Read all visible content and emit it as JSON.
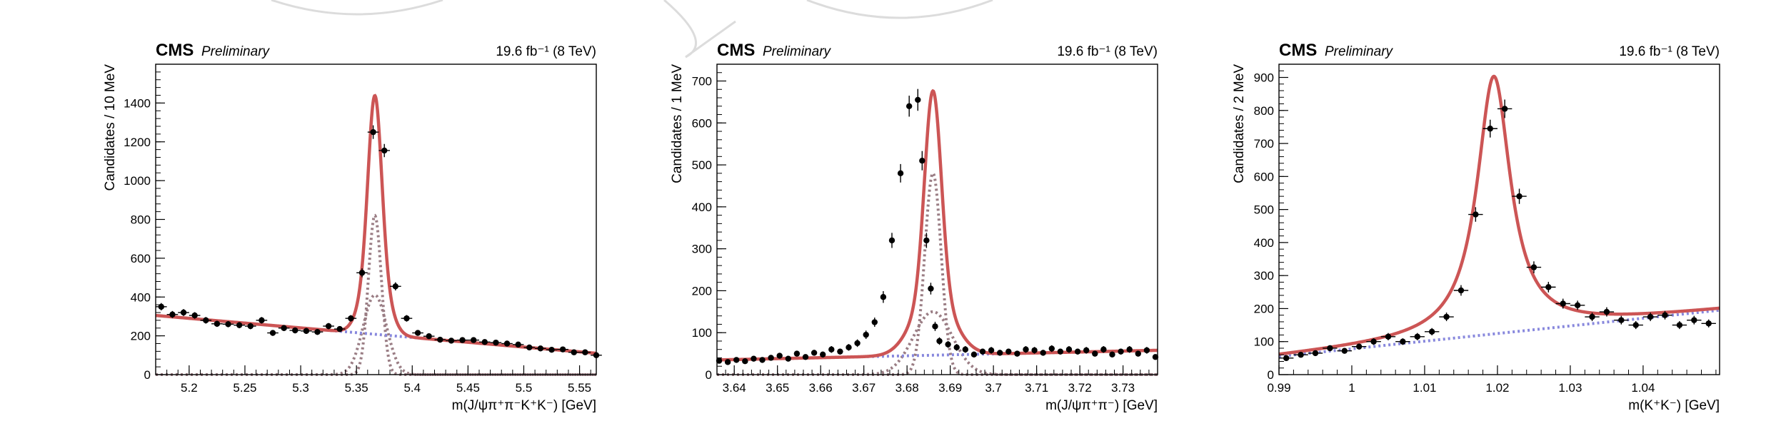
{
  "chart_data": [
    {
      "type": "scatter",
      "experiment": "CMS",
      "status": "Preliminary",
      "lumi_label": "19.6 fb⁻¹ (8 TeV)",
      "xlabel": "m(J/ψπ⁺π⁻K⁺K⁻) [GeV]",
      "ylabel": "Candidates / 10 MeV",
      "xlim": [
        5.17,
        5.565
      ],
      "ylim": [
        0,
        1600
      ],
      "xticks": [
        5.2,
        5.25,
        5.3,
        5.35,
        5.4,
        5.45,
        5.5,
        5.55
      ],
      "xtick_labels": [
        "5.2",
        "5.25",
        "5.3",
        "5.35",
        "5.4",
        "5.45",
        "5.5",
        "5.55"
      ],
      "yticks": [
        0,
        200,
        400,
        600,
        800,
        1000,
        1200,
        1400
      ],
      "ytick_labels": [
        "0",
        "200",
        "400",
        "600",
        "800",
        "1000",
        "1200",
        "1400"
      ],
      "bin_width": 0.01,
      "data_points": {
        "x": [
          5.175,
          5.185,
          5.195,
          5.205,
          5.215,
          5.225,
          5.235,
          5.245,
          5.255,
          5.265,
          5.275,
          5.285,
          5.295,
          5.305,
          5.315,
          5.325,
          5.335,
          5.345,
          5.355,
          5.365,
          5.375,
          5.385,
          5.395,
          5.405,
          5.415,
          5.425,
          5.435,
          5.445,
          5.455,
          5.465,
          5.475,
          5.485,
          5.495,
          5.505,
          5.515,
          5.525,
          5.535,
          5.545,
          5.555,
          5.565
        ],
        "y": [
          350,
          310,
          320,
          305,
          280,
          262,
          260,
          255,
          250,
          280,
          215,
          240,
          228,
          225,
          220,
          250,
          235,
          290,
          525,
          1250,
          1155,
          455,
          290,
          215,
          198,
          180,
          175,
          178,
          178,
          168,
          165,
          160,
          155,
          140,
          135,
          128,
          130,
          115,
          115,
          100
        ],
        "yerr": [
          19,
          18,
          18,
          17,
          17,
          16,
          16,
          16,
          16,
          17,
          15,
          15,
          15,
          15,
          15,
          16,
          15,
          17,
          23,
          35,
          34,
          21,
          17,
          15,
          14,
          13,
          13,
          13,
          13,
          13,
          13,
          13,
          12,
          12,
          12,
          11,
          11,
          11,
          11,
          10
        ]
      },
      "model": {
        "total_color": "#cc5555",
        "signal_color": "#9a7d84",
        "background_color": "#8888dd",
        "background": {
          "type": "linear",
          "y_at_xmin": 305,
          "y_at_xmax": 110
        },
        "signal": {
          "type": "double-gaussian",
          "mean": 5.3665,
          "components": [
            {
              "amplitude": 820,
              "sigma": 0.0058
            },
            {
              "amplitude": 410,
              "sigma": 0.0105
            }
          ]
        }
      }
    },
    {
      "type": "scatter",
      "experiment": "CMS",
      "status": "Preliminary",
      "lumi_label": "19.6 fb⁻¹ (8 TeV)",
      "xlabel": "m(J/ψπ⁺π⁻) [GeV]",
      "ylabel": "Candidates / 1 MeV",
      "xlim": [
        3.636,
        3.738
      ],
      "ylim": [
        0,
        740
      ],
      "xticks": [
        3.64,
        3.65,
        3.66,
        3.67,
        3.68,
        3.69,
        3.7,
        3.71,
        3.72,
        3.73
      ],
      "xtick_labels": [
        "3.64",
        "3.65",
        "3.66",
        "3.67",
        "3.68",
        "3.69",
        "3.7",
        "3.71",
        "3.72",
        "3.73"
      ],
      "yticks": [
        0,
        100,
        200,
        300,
        400,
        500,
        600,
        700
      ],
      "ytick_labels": [
        "0",
        "100",
        "200",
        "300",
        "400",
        "500",
        "600",
        "700"
      ],
      "bin_width": 0.001,
      "data_points": {
        "x": [
          3.6365,
          3.6385,
          3.6405,
          3.6425,
          3.6445,
          3.6465,
          3.6485,
          3.6505,
          3.6525,
          3.6545,
          3.6565,
          3.6585,
          3.6605,
          3.6625,
          3.6645,
          3.6665,
          3.6685,
          3.6705,
          3.6725,
          3.6745,
          3.6765,
          3.6785,
          3.6805,
          3.6825,
          3.6835,
          3.6845,
          3.6855,
          3.6865,
          3.6875,
          3.6895,
          3.6915,
          3.6935,
          3.6955,
          3.6975,
          3.6995,
          3.7015,
          3.7035,
          3.7055,
          3.7075,
          3.7095,
          3.7115,
          3.7135,
          3.7155,
          3.7175,
          3.7195,
          3.7215,
          3.7235,
          3.7255,
          3.7275,
          3.7295,
          3.7315,
          3.7335,
          3.7355,
          3.7375
        ],
        "y": [
          33,
          30,
          35,
          32,
          38,
          35,
          40,
          45,
          38,
          50,
          42,
          52,
          48,
          60,
          55,
          65,
          75,
          95,
          125,
          185,
          320,
          480,
          640,
          655,
          510,
          320,
          205,
          115,
          80,
          72,
          65,
          60,
          48,
          55,
          58,
          52,
          55,
          50,
          60,
          58,
          52,
          62,
          55,
          60,
          55,
          58,
          50,
          60,
          48,
          55,
          60,
          50,
          58,
          42
        ],
        "yerr": [
          6,
          5,
          6,
          6,
          6,
          6,
          6,
          7,
          6,
          7,
          6,
          7,
          7,
          8,
          7,
          8,
          9,
          10,
          11,
          14,
          18,
          22,
          25,
          26,
          23,
          18,
          14,
          11,
          9,
          8,
          8,
          8,
          7,
          7,
          8,
          7,
          7,
          7,
          8,
          8,
          7,
          8,
          7,
          8,
          7,
          8,
          7,
          8,
          7,
          7,
          8,
          7,
          8,
          6
        ]
      },
      "model": {
        "total_color": "#cc5555",
        "signal_color": "#9a7d84",
        "background_color": "#8888dd",
        "background": {
          "type": "linear",
          "y_at_xmin": 35,
          "y_at_xmax": 58
        },
        "signal": {
          "type": "double-gaussian",
          "mean": 3.686,
          "components": [
            {
              "amplitude": 480,
              "sigma": 0.0019
            },
            {
              "amplitude": 150,
              "sigma": 0.0045
            }
          ]
        }
      }
    },
    {
      "type": "scatter",
      "experiment": "CMS",
      "status": "Preliminary",
      "lumi_label": "19.6 fb⁻¹ (8 TeV)",
      "xlabel": "m(K⁺K⁻) [GeV]",
      "ylabel": "Candidates / 2 MeV",
      "xlim": [
        0.99,
        1.0505
      ],
      "ylim": [
        0,
        940
      ],
      "xticks": [
        0.99,
        1.0,
        1.01,
        1.02,
        1.03,
        1.04
      ],
      "xtick_labels": [
        "0.99",
        "1",
        "1.01",
        "1.02",
        "1.03",
        "1.04"
      ],
      "yticks": [
        0,
        100,
        200,
        300,
        400,
        500,
        600,
        700,
        800,
        900
      ],
      "ytick_labels": [
        "0",
        "100",
        "200",
        "300",
        "400",
        "500",
        "600",
        "700",
        "800",
        "900"
      ],
      "bin_width": 0.002,
      "data_points": {
        "x": [
          0.991,
          0.993,
          0.995,
          0.997,
          0.999,
          1.001,
          1.003,
          1.005,
          1.007,
          1.009,
          1.011,
          1.013,
          1.015,
          1.017,
          1.019,
          1.021,
          1.023,
          1.025,
          1.027,
          1.029,
          1.031,
          1.033,
          1.035,
          1.037,
          1.039,
          1.041,
          1.043,
          1.045,
          1.047,
          1.049
        ],
        "y": [
          50,
          60,
          65,
          80,
          72,
          85,
          100,
          115,
          100,
          115,
          130,
          175,
          255,
          485,
          745,
          805,
          540,
          325,
          265,
          215,
          210,
          175,
          190,
          165,
          150,
          175,
          180,
          150,
          165,
          155
        ],
        "yerr": [
          7,
          8,
          8,
          9,
          8,
          9,
          10,
          11,
          10,
          11,
          11,
          13,
          16,
          22,
          27,
          28,
          23,
          18,
          16,
          15,
          14,
          13,
          14,
          13,
          12,
          13,
          13,
          12,
          13,
          12
        ]
      },
      "model": {
        "total_color": "#cc5555",
        "background_color": "#8888dd",
        "background": {
          "type": "linear",
          "y_at_xmin": 55,
          "y_at_xmax": 195
        },
        "signal": {
          "type": "breit-wigner",
          "mean": 1.0195,
          "gamma": 0.0056,
          "amplitude": 780
        }
      }
    }
  ]
}
